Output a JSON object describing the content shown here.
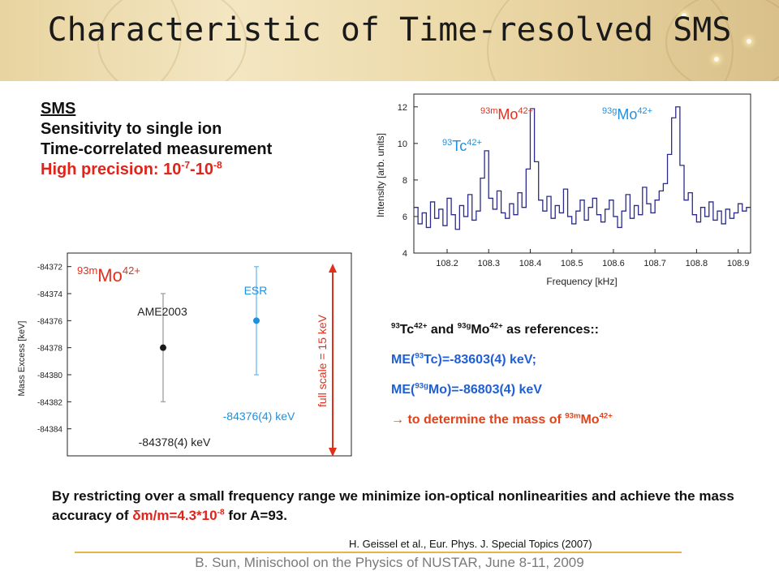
{
  "title": "Characteristic of Time-resolved SMS",
  "sms_block": {
    "heading": "SMS",
    "line1": "Sensitivity to single ion",
    "line2": "Time-correlated measurement",
    "precision_prefix": "High precision: 10",
    "precision_exp1": "-7",
    "precision_mid": "-10",
    "precision_exp2": "-8"
  },
  "spectrum_chart": {
    "ylabel": "Intensity [arb. units]",
    "xlabel": "Frequency [kHz]",
    "xticks": [
      "108.2",
      "108.3",
      "108.4",
      "108.5",
      "108.6",
      "108.7",
      "108.8",
      "108.9"
    ],
    "yticks": [
      "4",
      "6",
      "8",
      "10",
      "12"
    ],
    "peak_labels": [
      {
        "mass": "93",
        "symbol": "Tc",
        "charge": "42+"
      },
      {
        "mass": "93m",
        "symbol": "Mo",
        "charge": "42+"
      },
      {
        "mass": "93g",
        "symbol": "Mo",
        "charge": "42+"
      }
    ],
    "line_color": "#2b2b8c"
  },
  "mass_chart": {
    "ylabel": "Mass Excess [keV]",
    "yticks": [
      "-84384",
      "-84382",
      "-84380",
      "-84378",
      "-84376",
      "-84374",
      "-84372"
    ],
    "title_mass": "93m",
    "title_symbol": "Mo",
    "title_charge": "42+",
    "ame_label": "AME2003",
    "ame_value": "-84378(4) keV",
    "esr_label": "ESR",
    "esr_value": "-84376(4) keV",
    "scale_label": "full scale = 15 keV",
    "colors": {
      "ame": "#1a1a1a",
      "esr": "#1e90e0",
      "scale": "#e0301c"
    }
  },
  "chart_data": [
    {
      "type": "line",
      "xlabel": "Frequency [kHz]",
      "ylabel": "Intensity [arb. units]",
      "xlim": [
        108.12,
        108.93
      ],
      "ylim": [
        4,
        12.7
      ],
      "x": [
        108.12,
        108.13,
        108.14,
        108.15,
        108.16,
        108.17,
        108.18,
        108.19,
        108.2,
        108.21,
        108.22,
        108.23,
        108.24,
        108.25,
        108.26,
        108.27,
        108.28,
        108.29,
        108.3,
        108.31,
        108.32,
        108.33,
        108.34,
        108.35,
        108.36,
        108.37,
        108.38,
        108.39,
        108.4,
        108.41,
        108.42,
        108.43,
        108.44,
        108.45,
        108.46,
        108.47,
        108.48,
        108.49,
        108.5,
        108.51,
        108.52,
        108.53,
        108.54,
        108.55,
        108.56,
        108.57,
        108.58,
        108.59,
        108.6,
        108.61,
        108.62,
        108.63,
        108.64,
        108.65,
        108.66,
        108.67,
        108.68,
        108.69,
        108.7,
        108.71,
        108.72,
        108.73,
        108.74,
        108.75,
        108.76,
        108.77,
        108.78,
        108.79,
        108.8,
        108.81,
        108.82,
        108.83,
        108.84,
        108.85,
        108.86,
        108.87,
        108.88,
        108.89,
        108.9,
        108.91,
        108.92
      ],
      "y": [
        6.5,
        5.6,
        6.2,
        5.4,
        6.8,
        5.9,
        6.4,
        5.5,
        7.0,
        6.1,
        5.3,
        6.6,
        6.0,
        7.2,
        5.8,
        6.3,
        8.1,
        9.6,
        7.0,
        6.4,
        7.4,
        6.2,
        5.9,
        6.7,
        6.1,
        7.3,
        6.5,
        8.6,
        11.9,
        9.0,
        6.9,
        6.3,
        7.1,
        5.9,
        6.6,
        6.2,
        7.5,
        6.0,
        5.6,
        6.3,
        6.9,
        5.8,
        6.5,
        7.0,
        6.1,
        5.7,
        6.4,
        6.9,
        6.0,
        5.4,
        6.3,
        7.2,
        5.9,
        6.6,
        6.1,
        7.6,
        6.7,
        6.2,
        6.9,
        7.4,
        7.8,
        9.4,
        11.4,
        12.0,
        8.8,
        6.9,
        7.3,
        6.1,
        5.7,
        6.5,
        6.0,
        6.8,
        5.8,
        6.3,
        5.6,
        6.4,
        5.9,
        6.2,
        6.7,
        6.3,
        6.5
      ]
    },
    {
      "type": "scatter",
      "ylabel": "Mass Excess [keV]",
      "ylim": [
        -84371,
        -84386
      ],
      "series": [
        {
          "name": "AME2003",
          "values": [
            -84378
          ],
          "errors": [
            4
          ]
        },
        {
          "name": "ESR",
          "values": [
            -84376
          ],
          "errors": [
            4
          ]
        }
      ]
    }
  ],
  "references": {
    "line1_mass1": "93",
    "line1_sym1": "Tc",
    "line1_ch1": "42+",
    "line1_and": " and ",
    "line1_mass2": "93g",
    "line1_sym2": "Mo",
    "line1_ch2": "42+",
    "line1_tail": " as references::",
    "line2_pre": "ME(",
    "line2_mass": "93",
    "line2_post": "Tc)=-83603(4) keV;",
    "line3_pre": "ME(",
    "line3_mass": "93g",
    "line3_post": "Mo)=-86803(4) keV",
    "line4_arrow": "→",
    "line4_text": " to determine the mass of ",
    "line4_mass": "93m",
    "line4_sym": "Mo",
    "line4_ch": "42+"
  },
  "note": {
    "text1": "By restricting over a small frequency range we minimize ion-optical nonlinearities and achieve the mass accuracy of ",
    "delta": "δm/m=4.3*10",
    "delta_exp": "-8",
    "text2": "  for A=93."
  },
  "citation": "H. Geissel et al., Eur. Phys. J. Special Topics (2007)",
  "footer": "B. Sun, Minischool on the Physics of NUSTAR, June 8-11, 2009"
}
